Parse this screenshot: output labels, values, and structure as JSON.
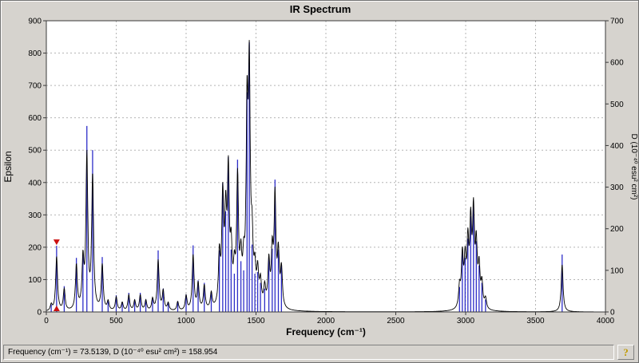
{
  "status_bar": {
    "text": "Frequency (cm⁻¹) = 73.5139, D (10⁻⁴⁰ esu² cm²) = 158.954",
    "help_label": "?"
  },
  "chart_data": {
    "type": "line",
    "title": "IR Spectrum",
    "xlabel": "Frequency (cm⁻¹)",
    "ylabel_left": "Epsilon",
    "ylabel_right": "D (10⁻⁴⁰ esu² cm²)",
    "xlim": [
      0,
      4000
    ],
    "ylim_left": [
      0,
      900
    ],
    "ylim_right": [
      0,
      700
    ],
    "x_ticks": [
      0,
      500,
      1000,
      1500,
      2000,
      2500,
      3000,
      3500,
      4000
    ],
    "y_ticks_left": [
      0,
      100,
      200,
      300,
      400,
      500,
      600,
      700,
      800,
      900
    ],
    "y_ticks_right": [
      0,
      100,
      200,
      300,
      400,
      500,
      600,
      700
    ],
    "grid": "dashed",
    "legend": "none",
    "selected_peak": {
      "frequency": 73.5139,
      "D": 158.954
    },
    "peaks_units": "[frequency in cm-1, D in 10^-40 esu^2 cm^2 (right axis)]",
    "peaks": [
      [
        35,
        18
      ],
      [
        73.5139,
        158.954
      ],
      [
        128,
        62
      ],
      [
        215,
        130
      ],
      [
        262,
        138
      ],
      [
        290,
        447
      ],
      [
        331,
        389
      ],
      [
        400,
        132
      ],
      [
        442,
        26
      ],
      [
        500,
        40
      ],
      [
        543,
        24
      ],
      [
        590,
        46
      ],
      [
        632,
        30
      ],
      [
        672,
        46
      ],
      [
        712,
        30
      ],
      [
        760,
        34
      ],
      [
        800,
        148
      ],
      [
        836,
        56
      ],
      [
        872,
        22
      ],
      [
        940,
        26
      ],
      [
        1000,
        42
      ],
      [
        1050,
        160
      ],
      [
        1086,
        76
      ],
      [
        1130,
        70
      ],
      [
        1180,
        46
      ],
      [
        1238,
        148
      ],
      [
        1262,
        310
      ],
      [
        1283,
        242
      ],
      [
        1302,
        372
      ],
      [
        1322,
        150
      ],
      [
        1345,
        92
      ],
      [
        1368,
        366
      ],
      [
        1392,
        122
      ],
      [
        1412,
        100
      ],
      [
        1436,
        528
      ],
      [
        1452,
        648
      ],
      [
        1472,
        162
      ],
      [
        1492,
        92
      ],
      [
        1512,
        96
      ],
      [
        1532,
        70
      ],
      [
        1562,
        56
      ],
      [
        1592,
        130
      ],
      [
        1616,
        152
      ],
      [
        1636,
        318
      ],
      [
        1660,
        150
      ],
      [
        1682,
        112
      ],
      [
        2956,
        60
      ],
      [
        2976,
        150
      ],
      [
        2996,
        130
      ],
      [
        3016,
        176
      ],
      [
        3036,
        230
      ],
      [
        3056,
        264
      ],
      [
        3076,
        170
      ],
      [
        3096,
        112
      ],
      [
        3116,
        70
      ],
      [
        3142,
        30
      ],
      [
        3690,
        138
      ]
    ],
    "curve": {
      "lorentzian_hwhm": 8,
      "scale": 0.82
    },
    "colors": {
      "stick": "#2e2ec8",
      "curve": "#000000",
      "marker": "#cc1111",
      "grid": "#b5b5b5",
      "frame": "#3a3a3a",
      "plot_bg": "#ffffff",
      "window_bg": "#d6d3ce"
    }
  }
}
